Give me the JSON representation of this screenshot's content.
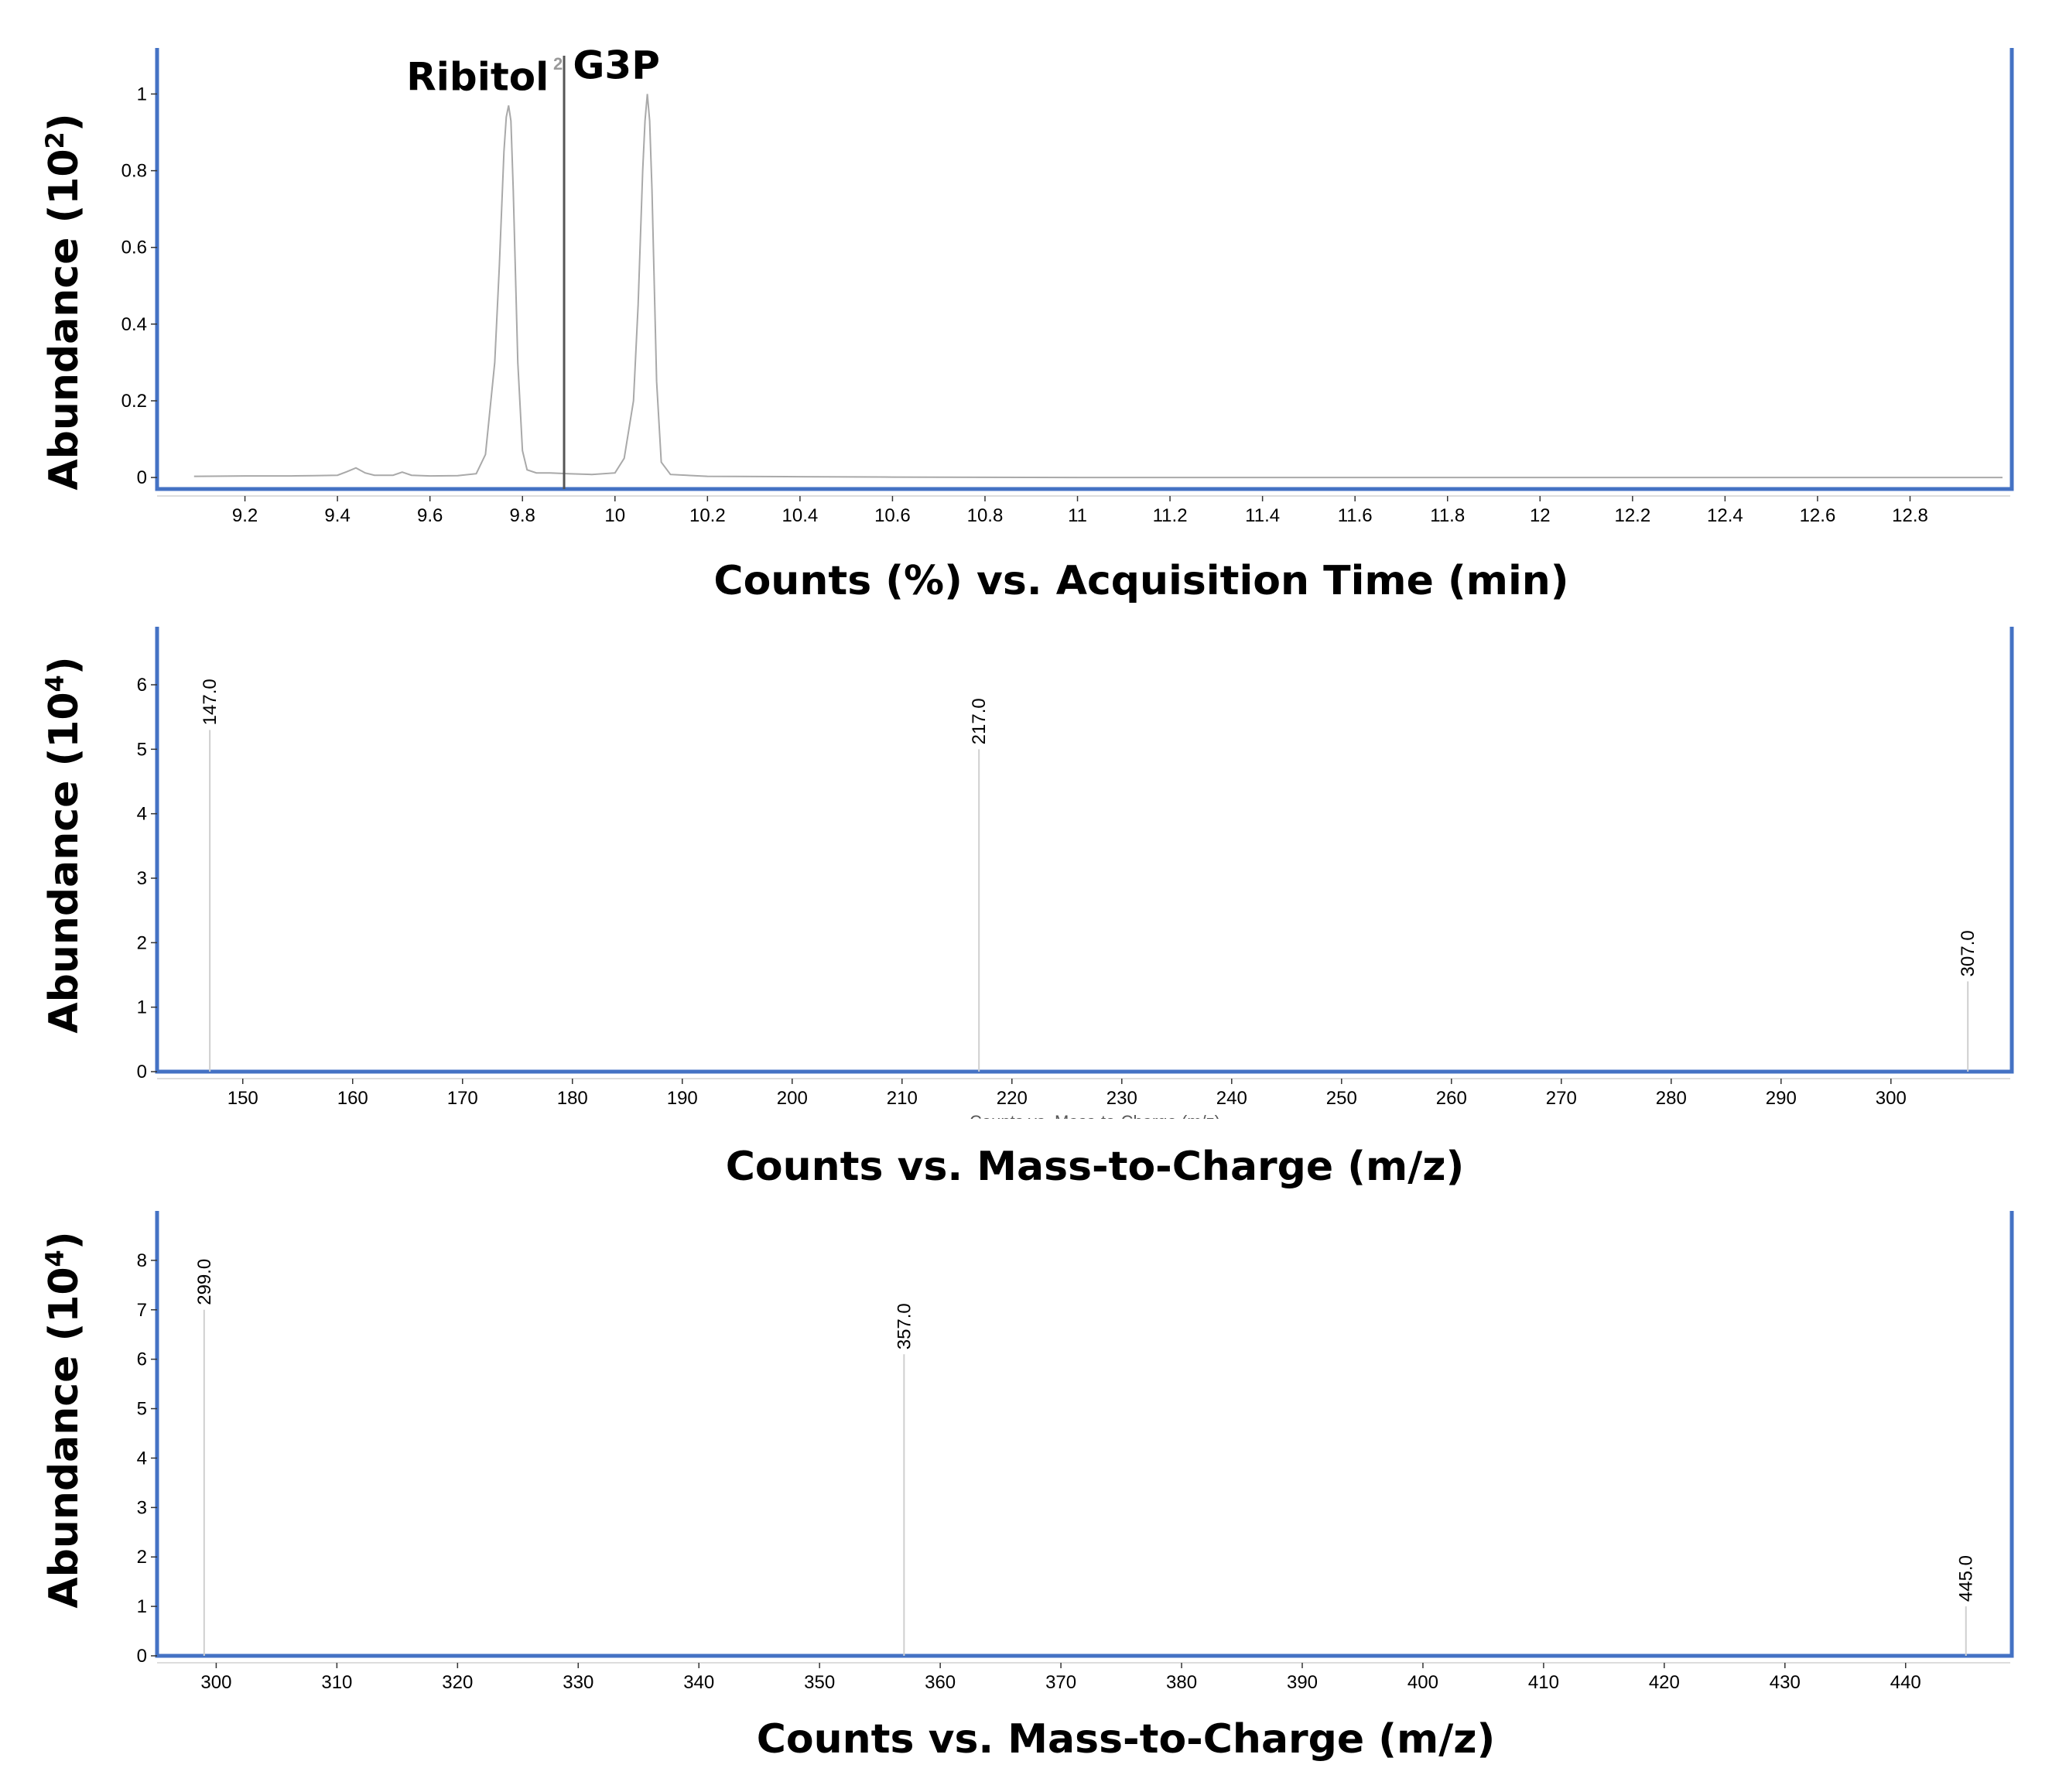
{
  "colors": {
    "frame": "#4472c4",
    "trace": "#a9a9a9",
    "bar": "#cfcfcf",
    "marker": "#555555"
  },
  "chart_data": [
    {
      "type": "line",
      "title": "",
      "ylabel": "Abundance (10",
      "ylabel_exp": "2",
      "ylabel_close": ")",
      "xlabel": "Counts (%) vs. Acquisition Time (min)",
      "xlim": [
        9.01,
        13.02
      ],
      "ylim": [
        -0.03,
        1.12
      ],
      "xticks": [
        "9.2",
        "9.4",
        "9.6",
        "9.8",
        "10",
        "10.2",
        "10.4",
        "10.6",
        "10.8",
        "11",
        "11.2",
        "11.4",
        "11.6",
        "11.8",
        "12",
        "12.2",
        "12.4",
        "12.6",
        "12.8"
      ],
      "yticks": [
        "0",
        "0.2",
        "0.4",
        "0.6",
        "0.8",
        "1"
      ],
      "grid": false,
      "legend": "none",
      "series": [
        {
          "x": [
            9.09,
            9.2,
            9.3,
            9.35,
            9.4,
            9.42,
            9.44,
            9.46,
            9.48,
            9.52,
            9.54,
            9.56,
            9.6,
            9.66,
            9.7,
            9.72,
            9.74,
            9.75,
            9.76,
            9.765,
            9.77,
            9.775,
            9.78,
            9.79,
            9.8,
            9.81,
            9.83,
            9.86,
            9.9,
            9.95,
            10.0,
            10.02,
            10.04,
            10.05,
            10.06,
            10.065,
            10.07,
            10.075,
            10.08,
            10.09,
            10.1,
            10.12,
            10.2,
            10.4,
            10.6,
            11.0,
            12.0,
            13.0
          ],
          "y": [
            0.003,
            0.004,
            0.004,
            0.005,
            0.006,
            0.015,
            0.025,
            0.012,
            0.006,
            0.006,
            0.014,
            0.006,
            0.004,
            0.005,
            0.01,
            0.06,
            0.3,
            0.55,
            0.85,
            0.94,
            0.97,
            0.93,
            0.75,
            0.3,
            0.07,
            0.02,
            0.012,
            0.012,
            0.01,
            0.008,
            0.012,
            0.05,
            0.2,
            0.45,
            0.8,
            0.93,
            1.0,
            0.93,
            0.75,
            0.25,
            0.04,
            0.008,
            0.003,
            0.002,
            0.001,
            0.0,
            0.0,
            0.0
          ]
        }
      ],
      "annotations": [
        {
          "text": "Ribitol",
          "x": 9.77,
          "y": 0.97
        },
        {
          "text": "G3P",
          "x": 10.07,
          "y": 1.0
        }
      ],
      "marker_line": {
        "x": 9.89,
        "label": "2"
      }
    },
    {
      "type": "bar",
      "title": "",
      "ylabel": "Abundance (10",
      "ylabel_exp": "4",
      "ylabel_close": ")",
      "xlabel": "Counts vs. Mass-to-Charge (m/z)",
      "clipped_xlabel": "Counts vs. Mass-to-Charge (m/z)",
      "xlim": [
        142.2,
        311.0
      ],
      "ylim": [
        0,
        6.9
      ],
      "xticks": [
        "150",
        "160",
        "170",
        "180",
        "190",
        "200",
        "210",
        "220",
        "230",
        "240",
        "250",
        "260",
        "270",
        "280",
        "290",
        "300"
      ],
      "yticks": [
        "0",
        "1",
        "2",
        "3",
        "4",
        "5",
        "6"
      ],
      "grid": false,
      "legend": "none",
      "x": [
        147.0,
        217.0,
        307.0
      ],
      "values": [
        5.3,
        5.0,
        1.4
      ],
      "labels": [
        "147.0",
        "217.0",
        "307.0"
      ]
    },
    {
      "type": "bar",
      "title": "",
      "ylabel": "Abundance (10",
      "ylabel_exp": "4",
      "ylabel_close": ")",
      "xlabel": "Counts vs. Mass-to-Charge (m/z)",
      "xlim": [
        295.1,
        448.8
      ],
      "ylim": [
        0,
        9.0
      ],
      "xticks": [
        "300",
        "310",
        "320",
        "330",
        "340",
        "350",
        "360",
        "370",
        "380",
        "390",
        "400",
        "410",
        "420",
        "430",
        "440"
      ],
      "yticks": [
        "0",
        "1",
        "2",
        "3",
        "4",
        "5",
        "6",
        "7",
        "8"
      ],
      "grid": false,
      "legend": "none",
      "x": [
        299.0,
        357.0,
        445.0
      ],
      "values": [
        7.0,
        6.1,
        1.0
      ],
      "labels": [
        "299.0",
        "357.0",
        "445.0"
      ]
    }
  ]
}
